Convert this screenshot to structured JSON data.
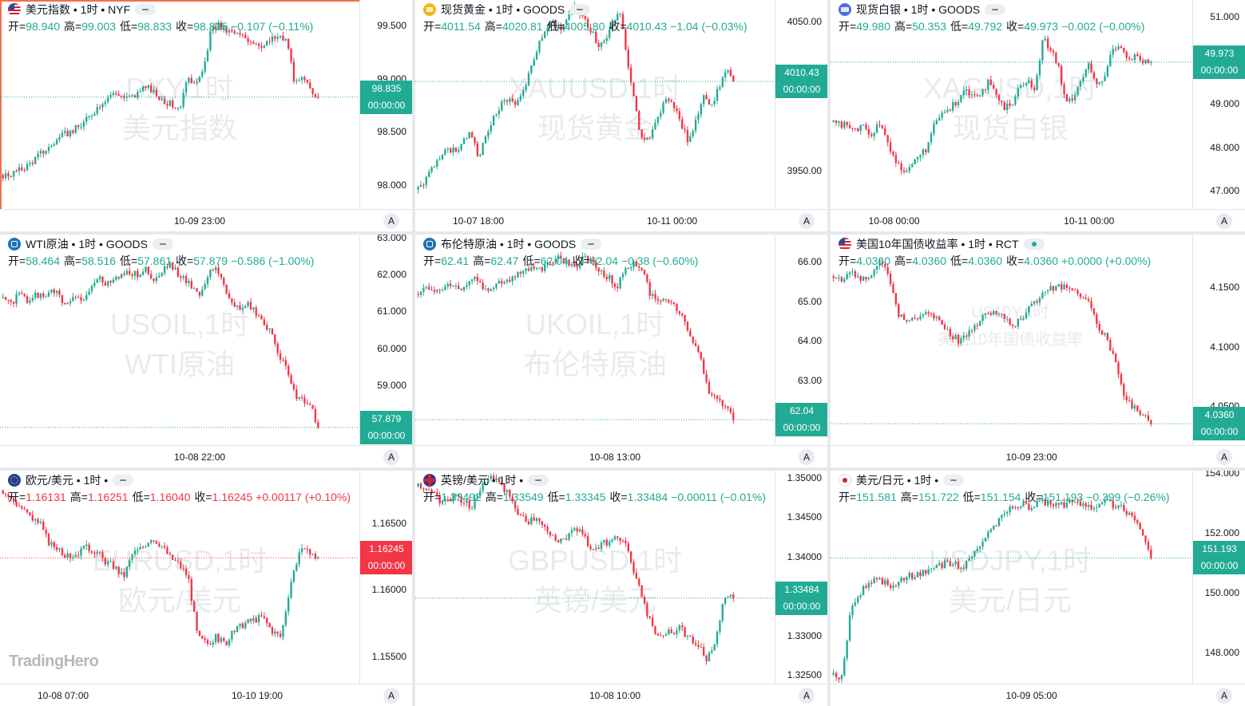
{
  "brand": "TradingHero",
  "colors": {
    "up": "#22ab94",
    "down": "#f23645",
    "active_border": "#f0704f"
  },
  "axis_button_label": "A",
  "panels": [
    {
      "id": "dxy",
      "flag": "flag-us",
      "header": "美元指数 • 1时 • NYF",
      "pill": "collapse",
      "ohlc": [
        [
          "开=",
          "98.940"
        ],
        [
          "高=",
          "99.003"
        ],
        [
          "低=",
          "98.833"
        ],
        [
          "收=",
          "98.835"
        ],
        [
          "",
          "−0.107 (−0.11%)"
        ]
      ],
      "ohlc_color": "up",
      "watermark": [
        "DXY,1时",
        "美元指数"
      ],
      "y_ticks": [
        "99.500",
        "99.000",
        "98.500",
        "98.000"
      ],
      "price": "98.835",
      "countdown": "00:00:00",
      "tag_color": "up",
      "x_ticks": [
        "10-09 23:00"
      ],
      "active": true,
      "chart_data": {
        "type": "candlestick",
        "ylim": [
          97.78,
          99.75
        ],
        "last": 98.835,
        "path": [
          98.1,
          98.11,
          98.14,
          98.18,
          98.24,
          98.31,
          98.36,
          98.43,
          98.48,
          98.52,
          98.56,
          98.63,
          98.72,
          98.8,
          98.86,
          98.87,
          98.82,
          98.84,
          98.9,
          98.92,
          98.85,
          98.8,
          98.76,
          98.74,
          98.98,
          99.0,
          99.05,
          99.45,
          99.52,
          99.46,
          99.44,
          99.41,
          99.38,
          99.35,
          99.32,
          99.38,
          99.4,
          99.36,
          98.95,
          99.0,
          98.92,
          98.835
        ]
      }
    },
    {
      "id": "xauusd",
      "flag": "flag-gold",
      "header": "现货黄金 • 1时 • GOODS",
      "pill": "collapse",
      "ohlc": [
        [
          "开=",
          "4011.54"
        ],
        [
          "高=",
          "4020.81"
        ],
        [
          "低=",
          "4005.80"
        ],
        [
          "收=",
          "4010.43"
        ],
        [
          "",
          "−1.04 (−0.03%)"
        ]
      ],
      "ohlc_color": "up",
      "watermark": [
        "XAUUSD,1时",
        "现货黄金"
      ],
      "y_ticks": [
        "4050.00",
        "3950.00"
      ],
      "price": "4010.43",
      "countdown": "00:00:00",
      "tag_color": "up",
      "x_ticks": [
        "10-07 18:00",
        "10-11 00:00"
      ],
      "active": false,
      "chart_data": {
        "type": "candlestick",
        "ylim": [
          3925,
          4065
        ],
        "last": 4010.43,
        "path": [
          3938,
          3945,
          3952,
          3960,
          3966,
          3963,
          3970,
          3975,
          3960,
          3972,
          3985,
          3995,
          4000,
          3995,
          4005,
          4020,
          4035,
          4045,
          4050,
          4045,
          4055,
          4060,
          4052,
          4045,
          4035,
          4040,
          4050,
          4058,
          4020,
          3990,
          3968,
          3975,
          3985,
          4000,
          3995,
          3982,
          3970,
          3985,
          4000,
          3995,
          4005,
          4018,
          4010
        ]
      }
    },
    {
      "id": "xagusd",
      "flag": "flag-silver",
      "header": "现货白银 • 1时 • GOODS",
      "pill": "collapse",
      "ohlc": [
        [
          "开=",
          "49.980"
        ],
        [
          "高=",
          "50.353"
        ],
        [
          "低=",
          "49.792"
        ],
        [
          "收=",
          "49.973"
        ],
        [
          "",
          "−0.002 (−0.00%)"
        ]
      ],
      "ohlc_color": "up",
      "watermark": [
        "XAGUSD,1时",
        "现货白银"
      ],
      "y_ticks": [
        "51.000",
        "49.000",
        "48.000",
        "47.000"
      ],
      "price": "49.973",
      "countdown": "00:00:00",
      "tag_color": "up",
      "x_ticks": [
        "10-08 00:00",
        "10-11 00:00"
      ],
      "active": false,
      "chart_data": {
        "type": "candlestick",
        "ylim": [
          46.6,
          51.4
        ],
        "last": 49.973,
        "path": [
          48.6,
          48.5,
          48.55,
          48.4,
          48.5,
          48.3,
          48.6,
          48.1,
          47.7,
          47.5,
          47.6,
          47.8,
          48.0,
          48.5,
          48.8,
          48.9,
          49.1,
          49.4,
          49.2,
          49.3,
          49.5,
          49.2,
          48.9,
          49.0,
          49.4,
          49.6,
          49.3,
          50.5,
          50.3,
          49.9,
          49.0,
          49.2,
          49.6,
          49.9,
          49.4,
          49.6,
          50.3,
          50.4,
          50.0,
          50.1,
          49.95,
          49.97
        ]
      }
    },
    {
      "id": "usoil",
      "flag": "flag-oil",
      "header": "WTI原油 • 1时 • GOODS",
      "pill": "collapse",
      "ohlc": [
        [
          "开=",
          "58.464"
        ],
        [
          "高=",
          "58.516"
        ],
        [
          "低=",
          "57.861"
        ],
        [
          "收=",
          "57.879"
        ],
        [
          "",
          "−0.586 (−1.00%)"
        ]
      ],
      "ohlc_color": "up",
      "watermark": [
        "USOIL,1时",
        "WTI原油"
      ],
      "y_ticks": [
        "63.000",
        "62.000",
        "61.000",
        "60.000",
        "59.000"
      ],
      "price": "57.879",
      "countdown": "00:00:00",
      "tag_color": "up",
      "x_ticks": [
        "10-08 22:00"
      ],
      "active": false,
      "chart_data": {
        "type": "candlestick",
        "ylim": [
          57.4,
          63.1
        ],
        "last": 57.879,
        "path": [
          61.4,
          61.2,
          61.5,
          61.3,
          61.5,
          61.4,
          61.6,
          61.5,
          61.2,
          61.4,
          61.3,
          61.6,
          61.9,
          61.8,
          61.9,
          62.0,
          62.1,
          62.0,
          62.2,
          61.8,
          62.0,
          62.3,
          62.1,
          61.9,
          61.7,
          61.5,
          62.0,
          62.2,
          61.8,
          61.2,
          61.1,
          61.2,
          61.0,
          60.8,
          60.4,
          59.9,
          59.4,
          58.8,
          58.6,
          58.5,
          57.879
        ]
      }
    },
    {
      "id": "ukoil",
      "flag": "flag-oil",
      "header": "布伦特原油 • 1时 • GOODS",
      "pill": "collapse",
      "ohlc": [
        [
          "开=",
          "62.41"
        ],
        [
          "高=",
          "62.47"
        ],
        [
          "低=",
          "62.04"
        ],
        [
          "收=",
          "62.04"
        ],
        [
          "",
          "−0.38 (−0.60%)"
        ]
      ],
      "ohlc_color": "up",
      "watermark": [
        "UKOIL,1时",
        "布伦特原油"
      ],
      "y_ticks": [
        "66.00",
        "65.00",
        "64.00",
        "63.00"
      ],
      "price": "62.04",
      "countdown": "00:00:00",
      "tag_color": "up",
      "x_ticks": [
        "10-08 13:00"
      ],
      "active": false,
      "chart_data": {
        "type": "candlestick",
        "ylim": [
          61.4,
          66.7
        ],
        "last": 62.04,
        "path": [
          65.2,
          65.4,
          65.3,
          65.4,
          65.5,
          65.3,
          65.4,
          65.6,
          65.3,
          65.4,
          65.5,
          65.6,
          65.7,
          65.8,
          65.9,
          65.8,
          66.0,
          66.1,
          66.0,
          65.9,
          66.1,
          66.0,
          65.8,
          65.6,
          65.4,
          65.9,
          66.0,
          65.8,
          65.2,
          65.0,
          65.1,
          64.9,
          64.6,
          64.0,
          63.6,
          62.8,
          62.5,
          62.4,
          62.04
        ]
      }
    },
    {
      "id": "us10y",
      "flag": "flag-us",
      "header": "美国10年国债收益率 • 1时 • RCT",
      "pill": "live",
      "ohlc": [
        [
          "开=",
          "4.0360"
        ],
        [
          "高=",
          "4.0360"
        ],
        [
          "低=",
          "4.0360"
        ],
        [
          "收=",
          "4.0360"
        ],
        [
          "",
          "+0.0000 (+0.00%)"
        ]
      ],
      "ohlc_color": "up",
      "watermark": [
        "US10Y,1时",
        "美国10年国债收益率"
      ],
      "y_ticks": [
        "4.1500",
        "4.1000",
        "4.0500"
      ],
      "price": "4.0360",
      "countdown": "00:00:00",
      "tag_color": "up",
      "x_ticks": [
        "10-09 23:00"
      ],
      "active": false,
      "chart_data": {
        "type": "candlestick",
        "ylim": [
          4.018,
          4.195
        ],
        "last": 4.036,
        "path": [
          4.16,
          4.158,
          4.162,
          4.156,
          4.16,
          4.17,
          4.165,
          4.13,
          4.12,
          4.125,
          4.13,
          4.127,
          4.12,
          4.11,
          4.105,
          4.115,
          4.12,
          4.13,
          4.128,
          4.124,
          4.118,
          4.128,
          4.135,
          4.145,
          4.15,
          4.152,
          4.148,
          4.145,
          4.14,
          4.12,
          4.11,
          4.09,
          4.06,
          4.05,
          4.045,
          4.036
        ]
      }
    },
    {
      "id": "eurusd",
      "flag": "flag-eu",
      "header": "欧元/美元 • 1时 •",
      "pill": "collapse",
      "ohlc": [
        [
          "开=",
          "1.16131"
        ],
        [
          "高=",
          "1.16251"
        ],
        [
          "低=",
          "1.16040"
        ],
        [
          "收=",
          "1.16245"
        ],
        [
          "",
          "+0.00117 (+0.10%)"
        ]
      ],
      "ohlc_color": "down",
      "watermark": [
        "EURUSD,1时",
        "欧元/美元"
      ],
      "y_ticks": [
        "1.16500",
        "1.16000",
        "1.15500"
      ],
      "price": "1.16245",
      "countdown": "00:00:00",
      "tag_color": "down",
      "x_ticks": [
        "10-08 07:00",
        "10-10 19:00"
      ],
      "active": false,
      "chart_data": {
        "type": "candlestick",
        "ylim": [
          1.153,
          1.169
        ],
        "last": 1.16245,
        "path": [
          1.1675,
          1.1668,
          1.1662,
          1.1655,
          1.165,
          1.1635,
          1.1632,
          1.1625,
          1.1628,
          1.1632,
          1.163,
          1.1622,
          1.1618,
          1.161,
          1.1628,
          1.1632,
          1.164,
          1.1635,
          1.1625,
          1.162,
          1.161,
          1.1565,
          1.156,
          1.1565,
          1.156,
          1.157,
          1.1575,
          1.1578,
          1.158,
          1.157,
          1.1565,
          1.1605,
          1.163,
          1.1628,
          1.16245
        ]
      }
    },
    {
      "id": "gbpusd",
      "flag": "flag-uk",
      "header": "英镑/美元 • 1时 •",
      "pill": "collapse",
      "ohlc": [
        [
          "开=",
          "1.33492"
        ],
        [
          "高=",
          "1.33549"
        ],
        [
          "低=",
          "1.33345"
        ],
        [
          "收=",
          "1.33484"
        ],
        [
          "",
          "−0.00011 (−0.01%)"
        ]
      ],
      "ohlc_color": "up",
      "watermark": [
        "GBPUSD,1时",
        "英镑/美元"
      ],
      "y_ticks": [
        "1.35000",
        "1.34500",
        "1.34000",
        "1.33000",
        "1.32500"
      ],
      "price": "1.33484",
      "countdown": "00:00:00",
      "tag_color": "up",
      "x_ticks": [
        "10-08 10:00"
      ],
      "active": false,
      "chart_data": {
        "type": "candlestick",
        "ylim": [
          1.324,
          1.351
        ],
        "last": 1.33484,
        "path": [
          1.349,
          1.3488,
          1.3475,
          1.347,
          1.348,
          1.347,
          1.3465,
          1.349,
          1.35,
          1.3495,
          1.348,
          1.346,
          1.3445,
          1.345,
          1.344,
          1.3425,
          1.342,
          1.343,
          1.344,
          1.341,
          1.3415,
          1.342,
          1.3425,
          1.342,
          1.338,
          1.3345,
          1.331,
          1.33,
          1.3305,
          1.331,
          1.33,
          1.329,
          1.327,
          1.329,
          1.335,
          1.3348
        ]
      }
    },
    {
      "id": "usdjpy",
      "flag": "flag-jp",
      "header": "美元/日元 • 1时 •",
      "pill": "collapse",
      "ohlc": [
        [
          "开=",
          "151.581"
        ],
        [
          "高=",
          "151.722"
        ],
        [
          "低=",
          "151.154"
        ],
        [
          "收=",
          "151.193"
        ],
        [
          "",
          "−0.399 (−0.26%)"
        ]
      ],
      "ohlc_color": "up",
      "watermark": [
        "USDJPY,1时",
        "美元/日元"
      ],
      "y_ticks": [
        "154.000",
        "152.000",
        "150.000",
        "148.000"
      ],
      "price": "151.193",
      "countdown": "00:00:00",
      "tag_color": "up",
      "x_ticks": [
        "10-09 05:00"
      ],
      "active": false,
      "chart_data": {
        "type": "candlestick",
        "ylim": [
          147.0,
          154.1
        ],
        "last": 151.193,
        "path": [
          147.3,
          147.2,
          149.5,
          150.0,
          150.3,
          150.5,
          150.4,
          150.2,
          150.5,
          150.6,
          150.7,
          150.8,
          150.9,
          151.0,
          151.0,
          150.9,
          151.1,
          151.6,
          152.0,
          152.3,
          152.7,
          152.9,
          153.0,
          152.8,
          153.1,
          153.0,
          152.9,
          153.0,
          153.1,
          153.0,
          152.9,
          153.0,
          153.1,
          152.9,
          152.8,
          152.4,
          152.0,
          151.193
        ]
      }
    }
  ]
}
